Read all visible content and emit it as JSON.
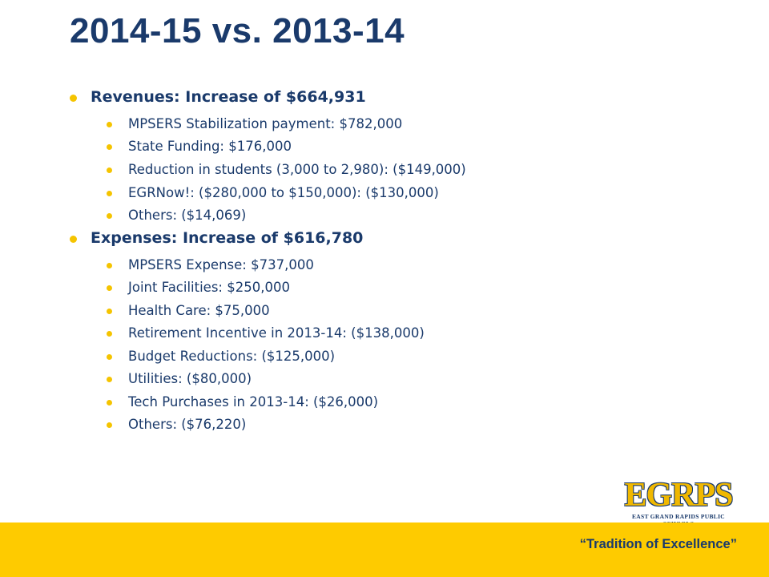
{
  "slide": {
    "title": "2014-15 vs. 2013-14",
    "sections": [
      {
        "heading": "Revenues:  Increase of $664,931",
        "items": [
          "MPSERS Stabilization payment:  $782,000",
          "State Funding:  $176,000",
          "Reduction in students (3,000 to 2,980): ($149,000)",
          "EGRNow!: ($280,000 to $150,000):  ($130,000)",
          "Others: ($14,069)"
        ]
      },
      {
        "heading": "Expenses: Increase of $616,780",
        "items": [
          "MPSERS Expense: $737,000",
          "Joint Facilities: $250,000",
          "Health Care: $75,000",
          "Retirement Incentive in 2013-14: ($138,000)",
          "Budget Reductions: ($125,000)",
          "Utilities: ($80,000)",
          "Tech Purchases in 2013-14: ($26,000)",
          "Others: ($76,220)"
        ]
      }
    ]
  },
  "logo": {
    "name": "EGRPS",
    "subtitle": "EAST GRAND RAPIDS PUBLIC SCHOOLS"
  },
  "footer": {
    "tagline": "“Tradition of Excellence”"
  },
  "colors": {
    "navy": "#1a3a6b",
    "gold": "#fecb00",
    "bullet": "#f5c400"
  }
}
